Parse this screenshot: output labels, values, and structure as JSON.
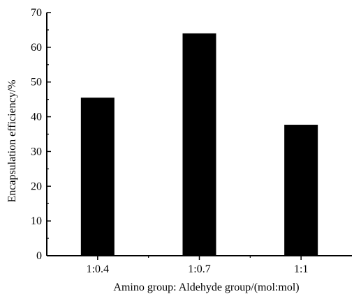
{
  "chart_data": {
    "type": "bar",
    "title": "",
    "xlabel": "Amino group: Aldehyde group/(mol:mol)",
    "ylabel": "Encapsulation efficiency/%",
    "categories": [
      "1:0.4",
      "1:0.7",
      "1:1"
    ],
    "values": [
      45.5,
      64,
      37.7
    ],
    "ylim": [
      0,
      70
    ],
    "yticks": [
      "0",
      "10",
      "20",
      "30",
      "40",
      "50",
      "60",
      "70"
    ],
    "grid": false,
    "legend": "none",
    "bar_color": "#000000"
  }
}
